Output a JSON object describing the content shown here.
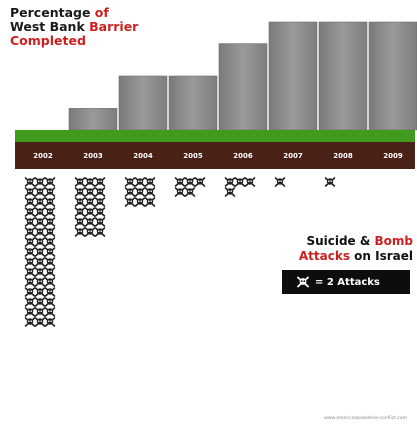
{
  "title": {
    "line1_a": "Percentage ",
    "line1_b": "of",
    "line2_a": "West Bank ",
    "line2_b": "Barrier",
    "line3": "Completed"
  },
  "legend": {
    "title_line1_a": "Suicide & ",
    "title_line1_b": "Bomb",
    "title_line2_a": "Attacks",
    "title_line2_b": " on Israel",
    "key_label": "= 2 Attacks",
    "key_icon": "skull-crossbones-icon"
  },
  "source": "www.americanpalestine-conflict.com",
  "colors": {
    "accent": "#cc1f1f",
    "wall": "#8c8c8c",
    "grass": "#3f9a1e",
    "soil": "#4a2117",
    "icon": "#222222"
  },
  "chart_data": {
    "type": "bar",
    "categories": [
      "2002",
      "2003",
      "2004",
      "2005",
      "2006",
      "2007",
      "2008",
      "2009"
    ],
    "series": [
      {
        "name": "Percentage of West Bank Barrier Completed",
        "values": [
          0,
          20,
          50,
          50,
          80,
          100,
          100,
          100
        ]
      },
      {
        "name": "Suicide & Bomb Attacks on Israel (icons, each = 2 attacks)",
        "values": [
          45,
          18,
          9,
          5,
          4,
          1,
          1,
          0
        ]
      }
    ],
    "ylim": [
      0,
      100
    ],
    "grid": false,
    "legend_position": "right"
  }
}
